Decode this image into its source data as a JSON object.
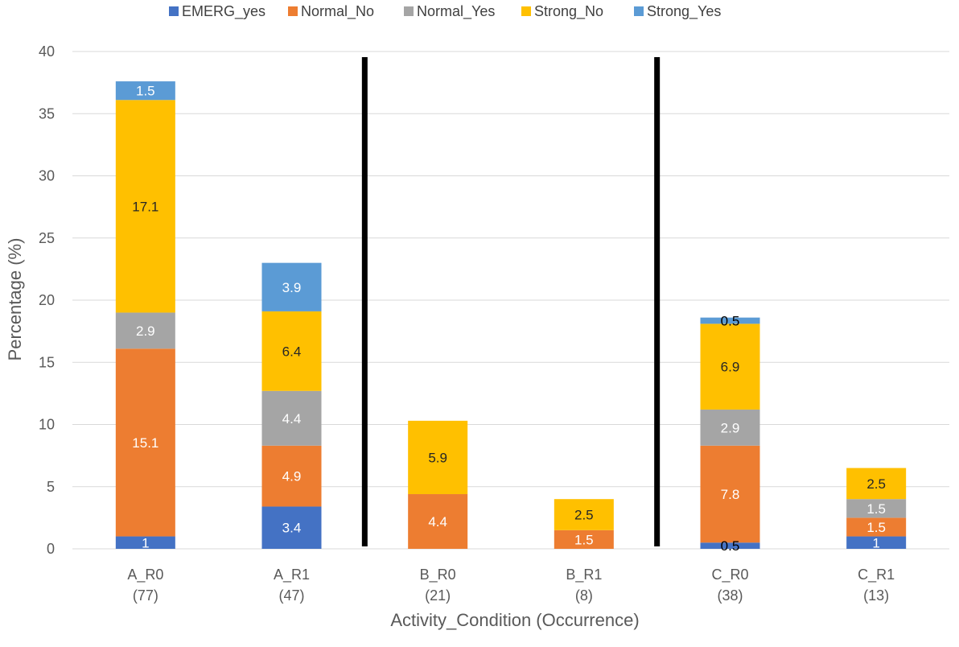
{
  "chart_data": {
    "type": "bar",
    "stacked": true,
    "xlabel": "Activity_Condition (Occurrence)",
    "ylabel": "Percentage (%)",
    "ylim": [
      0,
      40
    ],
    "yticks": [
      0,
      5,
      10,
      15,
      20,
      25,
      30,
      35,
      40
    ],
    "grid": true,
    "legend_position": "top",
    "categories": [
      "A_R0",
      "A_R1",
      "B_R0",
      "B_R1",
      "C_R0",
      "C_R1"
    ],
    "category_counts": [
      "(77)",
      "(47)",
      "(21)",
      "(8)",
      "(38)",
      "(13)"
    ],
    "separators_after": [
      "A_R1",
      "B_R1"
    ],
    "series": [
      {
        "name": "EMERG_yes",
        "color": "#4472C4",
        "label_color": "#ffffff",
        "values": [
          1,
          3.4,
          0,
          0,
          0.5,
          1
        ]
      },
      {
        "name": "Normal_No",
        "color": "#ED7D31",
        "label_color": "#ffffff",
        "values": [
          15.1,
          4.9,
          4.4,
          1.5,
          7.8,
          1.5
        ]
      },
      {
        "name": "Normal_Yes",
        "color": "#A5A5A5",
        "label_color": "#ffffff",
        "values": [
          2.9,
          4.4,
          0,
          0,
          2.9,
          1.5
        ]
      },
      {
        "name": "Strong_No",
        "color": "#FFC000",
        "label_color": "#262626",
        "values": [
          17.1,
          6.4,
          5.9,
          2.5,
          6.9,
          2.5
        ]
      },
      {
        "name": "Strong_Yes",
        "color": "#5B9BD5",
        "label_color": "#ffffff",
        "values": [
          1.5,
          3.9,
          0,
          0,
          0.5,
          0
        ]
      }
    ]
  }
}
